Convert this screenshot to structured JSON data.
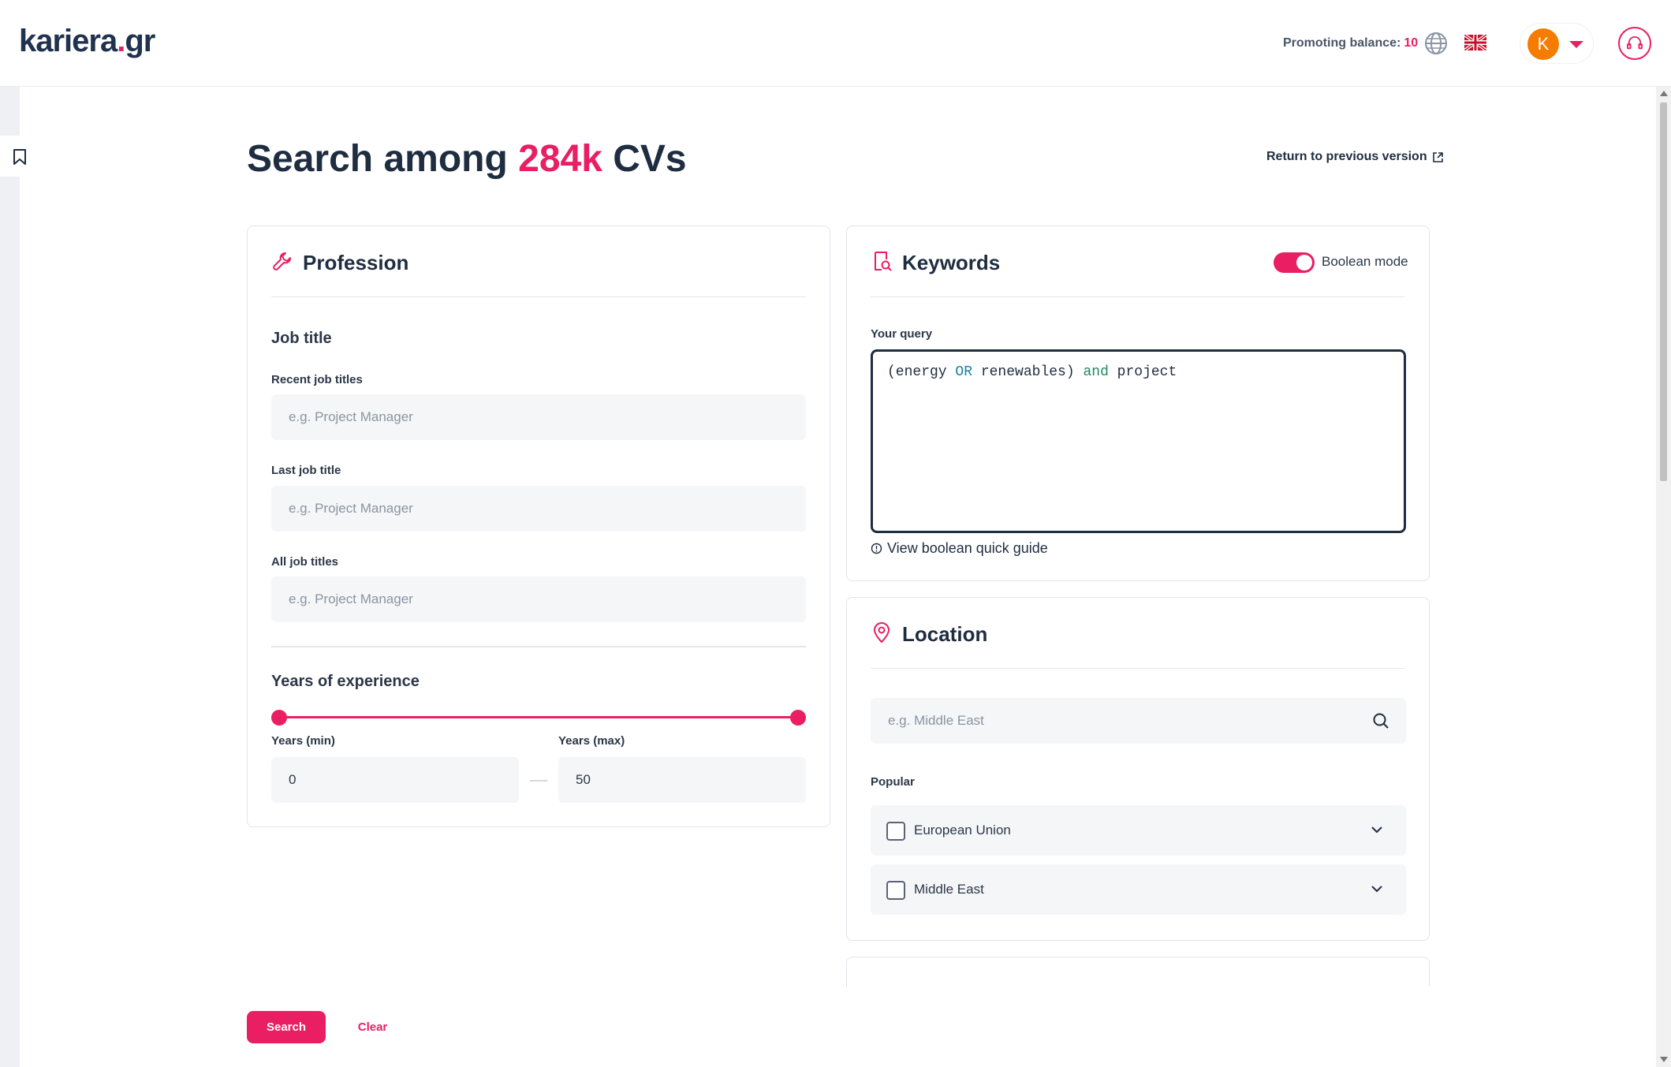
{
  "header": {
    "logo_main": "kariera",
    "logo_dot": ".",
    "logo_tld": "gr",
    "balance_label": "Promoting balance:",
    "balance_value": "10",
    "avatar_initial": "K"
  },
  "page": {
    "title_prefix": "Search among",
    "title_count": "284k",
    "title_suffix": "CVs",
    "return_link": "Return to previous version"
  },
  "profession": {
    "heading": "Profession",
    "job_title_section": "Job title",
    "recent_label": "Recent job titles",
    "recent_placeholder": "e.g. Project Manager",
    "last_label": "Last job title",
    "last_placeholder": "e.g. Project Manager",
    "all_label": "All job titles",
    "all_placeholder": "e.g. Project Manager",
    "experience_section": "Years of experience",
    "min_label": "Years (min)",
    "min_value": "0",
    "max_label": "Years (max)",
    "max_value": "50",
    "range_min_fraction": 0,
    "range_max_fraction": 1
  },
  "keywords": {
    "heading": "Keywords",
    "boolean_label": "Boolean mode",
    "boolean_on": true,
    "query_label": "Your query",
    "query_parts": {
      "p1": "(energy ",
      "op1": "OR",
      "p2": " renewables) ",
      "op2": "and",
      "p3": " project"
    },
    "guide_link": "View boolean quick guide"
  },
  "location": {
    "heading": "Location",
    "search_placeholder": "e.g. Middle East",
    "popular_label": "Popular",
    "options": [
      {
        "label": "European Union",
        "checked": false
      },
      {
        "label": "Middle East",
        "checked": false
      }
    ]
  },
  "actions": {
    "search": "Search",
    "clear": "Clear"
  },
  "colors": {
    "accent": "#e91e63",
    "text": "#1f2d40",
    "avatar": "#f57c00"
  }
}
